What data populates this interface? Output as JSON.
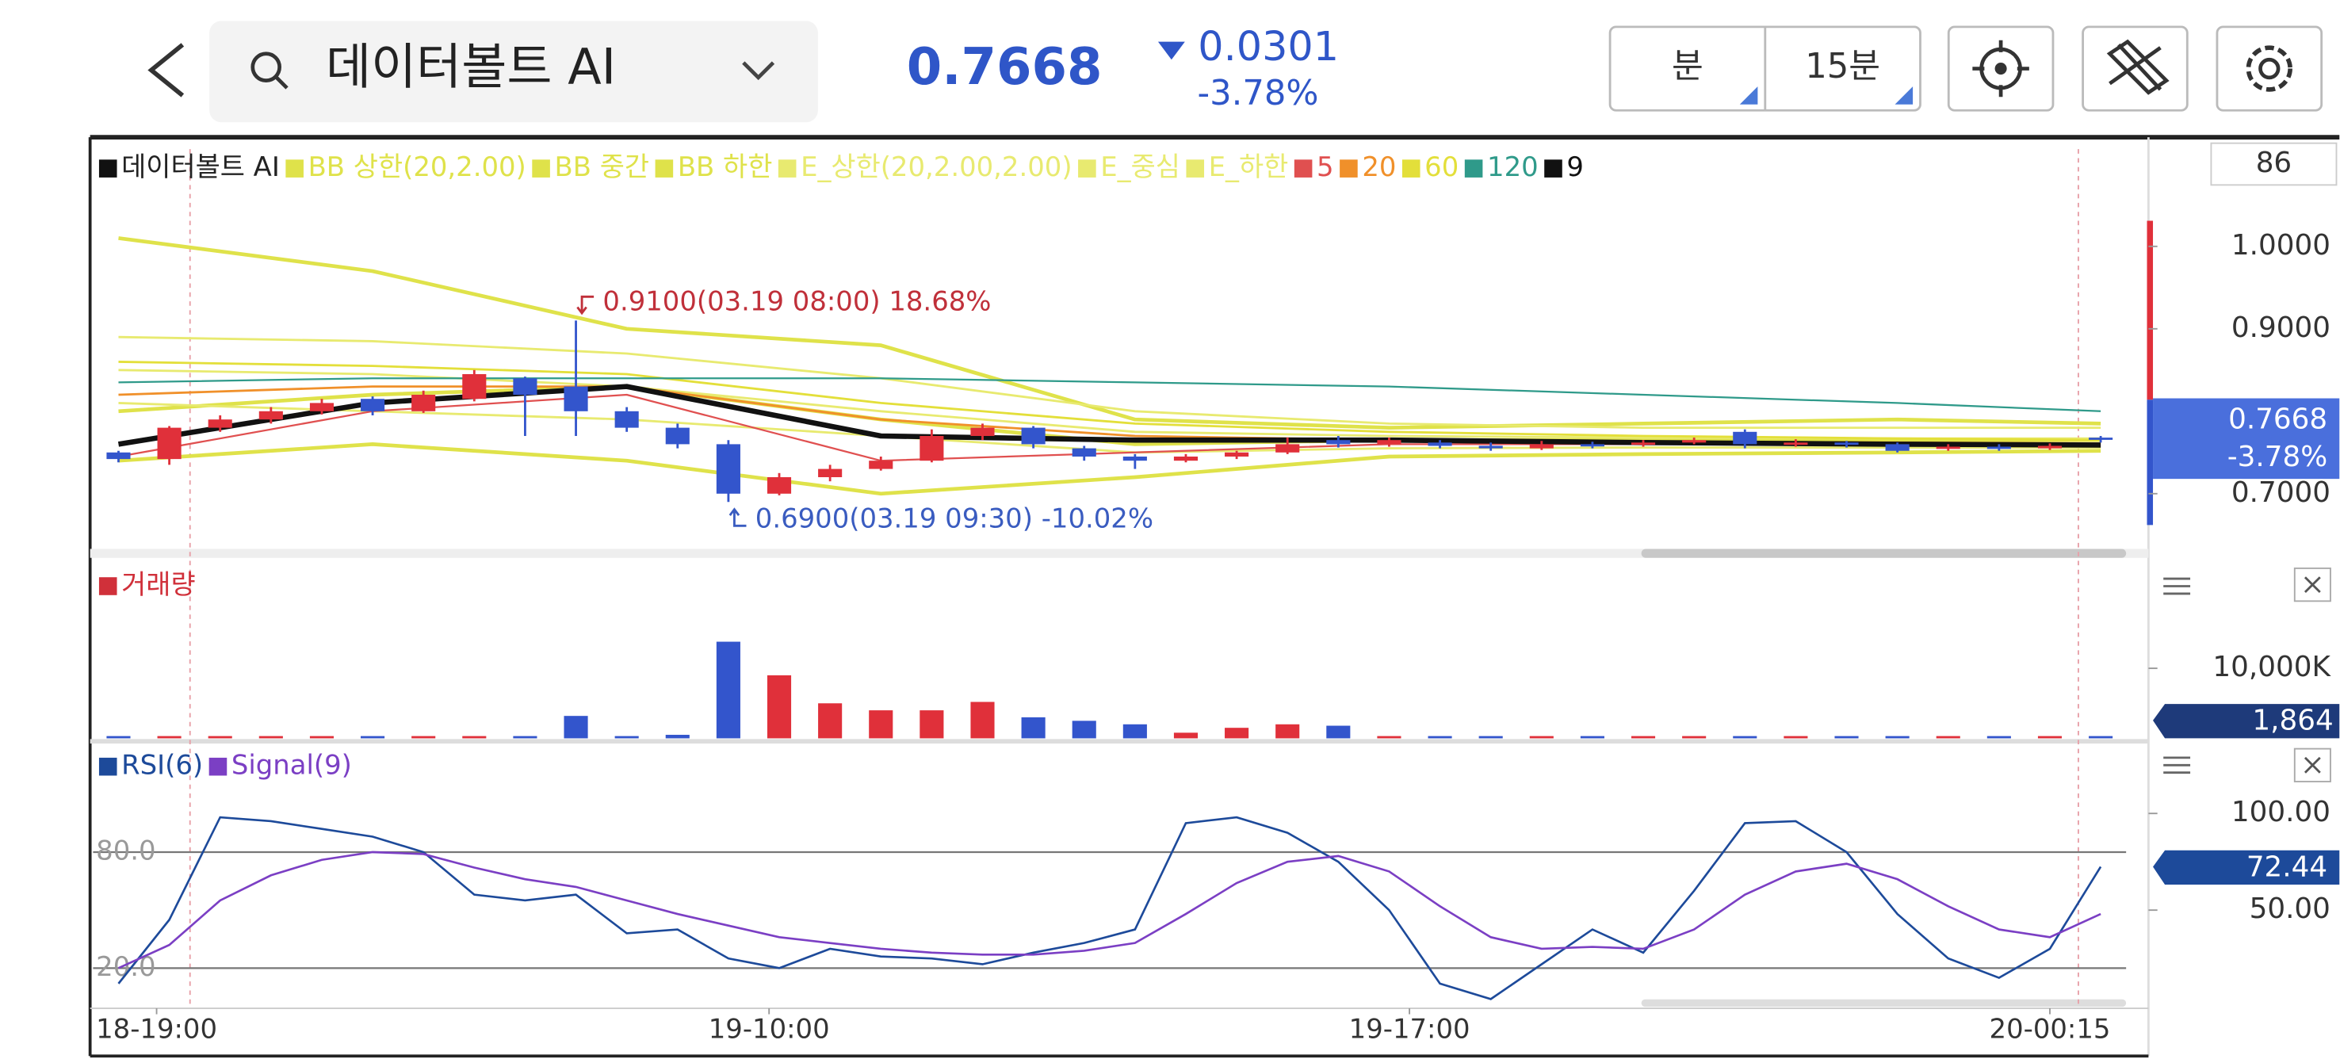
{
  "header": {
    "search_text": "데이터볼트 AI",
    "price": 0.7668,
    "change": 0.0301,
    "change_pct": "-3.78%",
    "period_unit": "분",
    "period": "15분"
  },
  "chart_data": [
    {
      "type": "candlestick",
      "name": "데이터볼트 AI",
      "name_color": "#222222",
      "up_color": "#e0303a",
      "down_color": "#3355cc",
      "ohlc": [
        [
          0.75,
          0.752,
          0.738,
          0.742
        ],
        [
          0.742,
          0.782,
          0.735,
          0.78
        ],
        [
          0.78,
          0.795,
          0.775,
          0.79
        ],
        [
          0.79,
          0.805,
          0.785,
          0.8
        ],
        [
          0.8,
          0.815,
          0.796,
          0.81
        ],
        [
          0.815,
          0.818,
          0.795,
          0.8
        ],
        [
          0.8,
          0.825,
          0.798,
          0.82
        ],
        [
          0.815,
          0.85,
          0.812,
          0.845
        ],
        [
          0.84,
          0.842,
          0.77,
          0.82
        ],
        [
          0.83,
          0.91,
          0.77,
          0.8
        ],
        [
          0.8,
          0.805,
          0.775,
          0.78
        ],
        [
          0.78,
          0.785,
          0.755,
          0.76
        ],
        [
          0.76,
          0.765,
          0.69,
          0.7
        ],
        [
          0.7,
          0.725,
          0.698,
          0.72
        ],
        [
          0.72,
          0.735,
          0.715,
          0.73
        ],
        [
          0.73,
          0.745,
          0.728,
          0.74
        ],
        [
          0.74,
          0.778,
          0.738,
          0.77
        ],
        [
          0.77,
          0.785,
          0.765,
          0.78
        ],
        [
          0.78,
          0.782,
          0.755,
          0.76
        ],
        [
          0.755,
          0.758,
          0.74,
          0.745
        ],
        [
          0.745,
          0.748,
          0.73,
          0.74
        ],
        [
          0.74,
          0.748,
          0.738,
          0.745
        ],
        [
          0.745,
          0.752,
          0.742,
          0.75
        ],
        [
          0.75,
          0.768,
          0.748,
          0.76
        ],
        [
          0.765,
          0.77,
          0.756,
          0.76
        ],
        [
          0.76,
          0.768,
          0.757,
          0.765
        ],
        [
          0.762,
          0.765,
          0.755,
          0.758
        ],
        [
          0.758,
          0.762,
          0.752,
          0.755
        ],
        [
          0.755,
          0.764,
          0.753,
          0.76
        ],
        [
          0.76,
          0.763,
          0.755,
          0.758
        ],
        [
          0.76,
          0.765,
          0.757,
          0.762
        ],
        [
          0.762,
          0.768,
          0.76,
          0.765
        ],
        [
          0.775,
          0.778,
          0.755,
          0.76
        ],
        [
          0.76,
          0.766,
          0.757,
          0.762
        ],
        [
          0.762,
          0.764,
          0.756,
          0.76
        ],
        [
          0.76,
          0.762,
          0.75,
          0.752
        ],
        [
          0.755,
          0.76,
          0.752,
          0.757
        ],
        [
          0.757,
          0.76,
          0.752,
          0.755
        ],
        [
          0.755,
          0.761,
          0.753,
          0.758
        ],
        [
          0.768,
          0.77,
          0.762,
          0.7668
        ]
      ],
      "series": [
        {
          "name": "BB 상한(20,2.00)",
          "color": "#dfe24a",
          "width": 2.5,
          "x": [
            0,
            5,
            10,
            15,
            20,
            25,
            30,
            35,
            39
          ],
          "values": [
            1.01,
            0.97,
            0.9,
            0.88,
            0.79,
            0.78,
            0.785,
            0.79,
            0.785
          ]
        },
        {
          "name": "BB 중간",
          "color": "#dfe24a",
          "width": 2.5,
          "x": [
            0,
            5,
            10,
            15,
            20,
            25,
            30,
            35,
            39
          ],
          "values": [
            0.8,
            0.82,
            0.83,
            0.79,
            0.76,
            0.765,
            0.765,
            0.765,
            0.765
          ]
        },
        {
          "name": "BB 하한",
          "color": "#dfe24a",
          "width": 2.5,
          "x": [
            0,
            5,
            10,
            15,
            20,
            25,
            30,
            35,
            39
          ],
          "values": [
            0.74,
            0.76,
            0.74,
            0.7,
            0.72,
            0.745,
            0.748,
            0.75,
            0.752
          ]
        },
        {
          "name": "E_상한(20,2.00,2.00)",
          "color": "#e8ea70",
          "width": 1.5,
          "x": [
            0,
            5,
            10,
            15,
            20,
            25,
            30,
            35,
            39
          ],
          "values": [
            0.89,
            0.885,
            0.87,
            0.84,
            0.8,
            0.785,
            0.78,
            0.78,
            0.78
          ]
        },
        {
          "name": "E_중심",
          "color": "#e8ea70",
          "width": 1.5,
          "x": [
            0,
            5,
            10,
            15,
            20,
            25,
            30,
            35,
            39
          ],
          "values": [
            0.85,
            0.845,
            0.83,
            0.8,
            0.775,
            0.77,
            0.768,
            0.767,
            0.767
          ]
        },
        {
          "name": "E_하한",
          "color": "#e8ea70",
          "width": 1.5,
          "x": [
            0,
            5,
            10,
            15,
            20,
            25,
            30,
            35,
            39
          ],
          "values": [
            0.81,
            0.8,
            0.79,
            0.77,
            0.75,
            0.755,
            0.756,
            0.756,
            0.756
          ]
        },
        {
          "name": "5",
          "color": "#e05050",
          "width": 1.2,
          "x": [
            0,
            5,
            10,
            15,
            20,
            25,
            30,
            35,
            39
          ],
          "values": [
            0.745,
            0.8,
            0.82,
            0.74,
            0.75,
            0.76,
            0.76,
            0.76,
            0.758
          ]
        },
        {
          "name": "20",
          "color": "#f0902a",
          "width": 1.5,
          "x": [
            0,
            5,
            10,
            15,
            20,
            25,
            30,
            35,
            39
          ],
          "values": [
            0.82,
            0.83,
            0.83,
            0.79,
            0.77,
            0.765,
            0.763,
            0.762,
            0.761
          ]
        },
        {
          "name": "60",
          "color": "#e3df3a",
          "width": 1.5,
          "x": [
            0,
            5,
            10,
            15,
            20,
            25,
            30,
            35,
            39
          ],
          "values": [
            0.86,
            0.855,
            0.845,
            0.81,
            0.785,
            0.775,
            0.77,
            0.767,
            0.765
          ]
        },
        {
          "name": "120",
          "color": "#2f9a8a",
          "width": 1.2,
          "x": [
            0,
            5,
            10,
            15,
            20,
            25,
            30,
            35,
            39
          ],
          "values": [
            0.835,
            0.84,
            0.84,
            0.84,
            0.835,
            0.83,
            0.82,
            0.81,
            0.8
          ]
        },
        {
          "name": "9",
          "color": "#111111",
          "width": 3.5,
          "x": [
            0,
            5,
            10,
            15,
            20,
            25,
            30,
            35,
            39
          ],
          "values": [
            0.76,
            0.81,
            0.83,
            0.77,
            0.765,
            0.765,
            0.762,
            0.76,
            0.759
          ]
        }
      ],
      "xlim": [
        -0.5,
        39.5
      ],
      "ylim": [
        0.633,
        1.127
      ],
      "yticks": [
        {
          "value": 1,
          "label": "1.0000"
        },
        {
          "value": 0.9,
          "label": "0.9000"
        },
        {
          "value": 0.7,
          "label": "0.7000"
        }
      ],
      "corner_value": 86,
      "annotations": [
        {
          "text": "0.9100(03.19 08:00) 18.68%",
          "value": 0.91,
          "x": 9,
          "color": "#c0303a"
        },
        {
          "text": "0.6900(03.19 09:30) -10.02%",
          "value": 0.69,
          "x": 12,
          "color": "#3a5cc0"
        }
      ]
    },
    {
      "type": "bar",
      "series": [
        {
          "name": "거래량",
          "color": "#d0303a",
          "values": [
            80000,
            60000,
            90000,
            40000,
            30000,
            20000,
            30000,
            40000,
            50000,
            3200000,
            200000,
            500000,
            13800000,
            9000000,
            5000000,
            4000000,
            4000000,
            5200000,
            3000000,
            2500000,
            2000000,
            800000,
            1500000,
            2000000,
            1800000,
            20000,
            20000,
            20000,
            20000,
            20000,
            20000,
            20000,
            20000,
            20000,
            20000,
            20000,
            20000,
            20000,
            20000,
            1864
          ],
          "value_labels": [
            null,
            null,
            null,
            null,
            null,
            null,
            null,
            null,
            null,
            null,
            null,
            null,
            null,
            null,
            null,
            null,
            null,
            null,
            null,
            null,
            null,
            null,
            null,
            null,
            null,
            null,
            null,
            null,
            null,
            null,
            null,
            null,
            null,
            null,
            null,
            null,
            null,
            null,
            null,
            "1,864"
          ]
        }
      ],
      "xlim": [
        -0.5,
        39.5
      ],
      "ylim": [
        0,
        24500000
      ],
      "yticks": [
        {
          "value": 10000000,
          "label": "10,000K"
        }
      ]
    },
    {
      "type": "line",
      "series": [
        {
          "name": "RSI(6)",
          "color": "#1d4a9a",
          "values": [
            12,
            45,
            98,
            96,
            92,
            88,
            80,
            58,
            55,
            58,
            38,
            40,
            25,
            20,
            30,
            26,
            25,
            22,
            28,
            33,
            40,
            95,
            98,
            90,
            75,
            50,
            12,
            4,
            22,
            40,
            28,
            60,
            95,
            96,
            80,
            48,
            25,
            15,
            30,
            72.44
          ]
        },
        {
          "name": "Signal(9)",
          "color": "#7b3fc4",
          "values": [
            20,
            32,
            55,
            68,
            76,
            80,
            79,
            72,
            66,
            62,
            55,
            48,
            42,
            36,
            33,
            30,
            28,
            27,
            27,
            29,
            33,
            48,
            64,
            75,
            78,
            70,
            52,
            36,
            30,
            31,
            30,
            40,
            58,
            70,
            74,
            66,
            52,
            40,
            36,
            48
          ]
        }
      ],
      "xlim": [
        -0.5,
        39.5
      ],
      "ylim": [
        0,
        135
      ],
      "yticks": [
        {
          "value": 100,
          "label": "100.00"
        },
        {
          "value": 50,
          "label": "50.00"
        }
      ],
      "hlines": [
        {
          "value": 80,
          "label": "80.0"
        },
        {
          "value": 20,
          "label": "20.0"
        }
      ],
      "xticks": [
        {
          "value": 0.75,
          "label": "18-19:00"
        },
        {
          "value": 12.8,
          "label": "19-10:00"
        },
        {
          "value": 25.4,
          "label": "19-17:00"
        },
        {
          "value": 38,
          "label": "20-00:15"
        }
      ]
    }
  ]
}
